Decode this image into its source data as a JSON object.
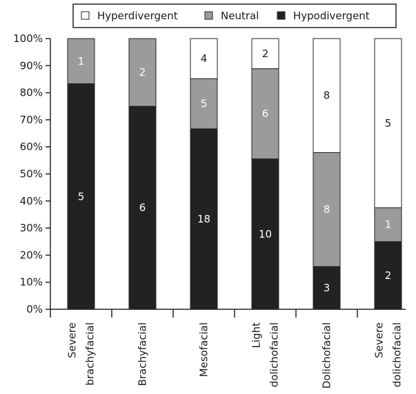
{
  "chart_data": {
    "type": "bar",
    "stacked": true,
    "percent": true,
    "categories": [
      [
        "Severe",
        "brachyfacial"
      ],
      [
        "Brachyfacial"
      ],
      [
        "Mesofacial"
      ],
      [
        "Light",
        "dolichofacial"
      ],
      [
        "Dolichofacial"
      ],
      [
        "Severe",
        "dolichofacial"
      ]
    ],
    "series": [
      {
        "name": "Hypodivergent",
        "values": [
          5,
          6,
          18,
          10,
          3,
          2
        ],
        "color": "#222222",
        "label_color": "#ffffff"
      },
      {
        "name": "Neutral",
        "values": [
          1,
          2,
          5,
          6,
          8,
          1
        ],
        "color": "#9b9b9b",
        "label_color": "#ffffff"
      },
      {
        "name": "Hyperdivergent",
        "values": [
          0,
          0,
          4,
          2,
          8,
          5
        ],
        "color": "#ffffff",
        "label_color": "#1a1a1a"
      }
    ],
    "ylim": [
      0,
      100
    ],
    "yticks": [
      "0%",
      "10%",
      "20%",
      "30%",
      "40%",
      "50%",
      "60%",
      "70%",
      "80%",
      "90%",
      "100%"
    ],
    "legend_order": [
      "Hyperdivergent",
      "Neutral",
      "Hypodivergent"
    ],
    "legend_position": "top",
    "grid": false
  }
}
